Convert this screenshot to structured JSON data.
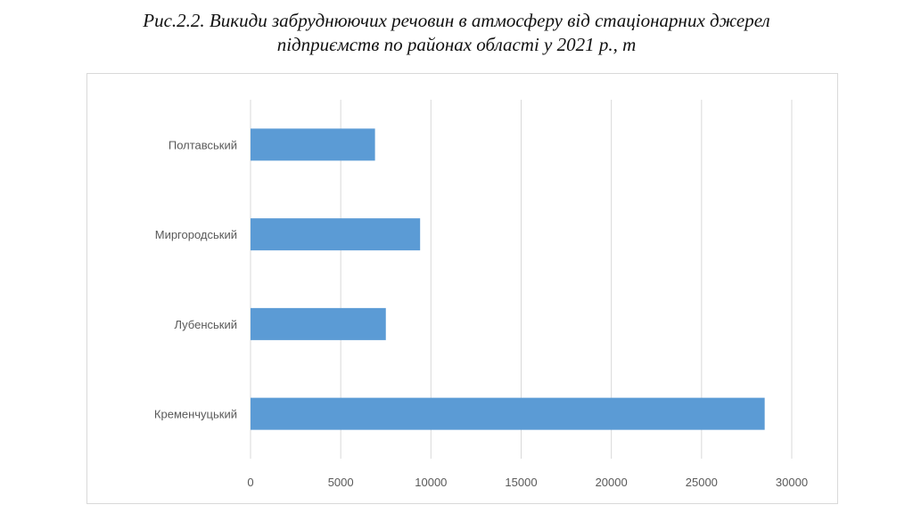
{
  "caption": {
    "line1": "Рис.2.2. Викиди забруднюючих речовин в атмосферу від стаціонарних джерел",
    "line2": "підприємств по районах області у 2021 р., т"
  },
  "chart_data": {
    "type": "bar",
    "orientation": "horizontal",
    "title": "Рис.2.2. Викиди забруднюючих речовин в атмосферу від стаціонарних джерел підприємств по районах області у 2021 р., т",
    "categories": [
      "Полтавський",
      "Миргородський",
      "Лубенський",
      "Кременчуцький"
    ],
    "values": [
      6900,
      9400,
      7500,
      28500
    ],
    "xlim": [
      0,
      30000
    ],
    "xticks": [
      0,
      5000,
      10000,
      15000,
      20000,
      25000,
      30000
    ],
    "grid": "vertical",
    "legend": "none",
    "bar_color": "#5b9bd5",
    "grid_color": "#d9d9d9"
  }
}
